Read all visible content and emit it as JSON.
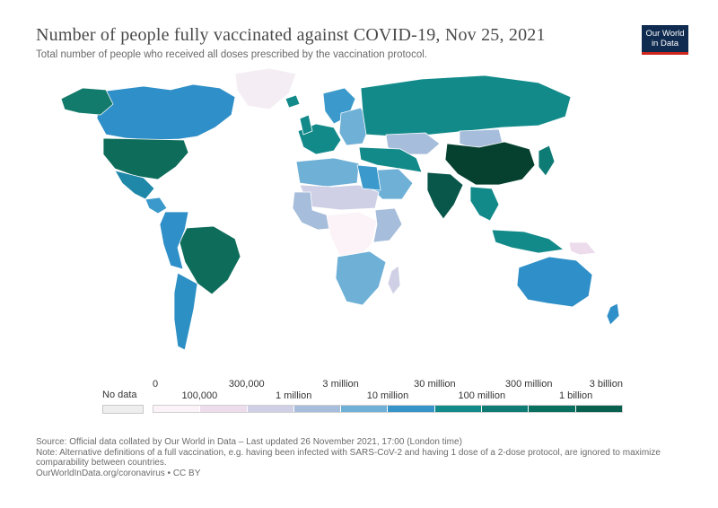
{
  "title": "Number of people fully vaccinated against COVID-19, Nov 25, 2021",
  "subtitle": "Total number of people who received all doses prescribed by the vaccination protocol.",
  "logo": {
    "line1": "Our World",
    "line2": "in Data"
  },
  "legend": {
    "no_data_label": "No data",
    "no_data_color": "#eeeeee",
    "top_ticks": [
      "0",
      "300,000",
      "3 million",
      "30 million",
      "300 million",
      "3 billion"
    ],
    "bottom_ticks": [
      "100,000",
      "1 million",
      "10 million",
      "100 million",
      "1 billion"
    ],
    "bin_colors": [
      "#fbf3f8",
      "#ecdcec",
      "#cfd0e6",
      "#a6bddb",
      "#6fb0d7",
      "#3794c8",
      "#138a8a",
      "#0e7b74",
      "#09705f",
      "#08604f"
    ]
  },
  "regions": [
    {
      "name": "canada",
      "color": "#2f8fc8"
    },
    {
      "name": "alaska",
      "color": "#137b6b"
    },
    {
      "name": "greenland",
      "color": "#f4eef4"
    },
    {
      "name": "united-states",
      "color": "#0e6d5a"
    },
    {
      "name": "mexico",
      "color": "#1f88a8"
    },
    {
      "name": "central-america",
      "color": "#3b9acb"
    },
    {
      "name": "brazil",
      "color": "#0e6d5a"
    },
    {
      "name": "south-america-west",
      "color": "#2f8fc8"
    },
    {
      "name": "argentina",
      "color": "#2c90c4"
    },
    {
      "name": "europe-west",
      "color": "#138a8a"
    },
    {
      "name": "scandinavia",
      "color": "#3b9acb"
    },
    {
      "name": "eastern-europe",
      "color": "#6fb0d7"
    },
    {
      "name": "russia",
      "color": "#138a8a"
    },
    {
      "name": "kazakhstan",
      "color": "#a6bddb"
    },
    {
      "name": "mongolia",
      "color": "#a6bddb"
    },
    {
      "name": "china",
      "color": "#06412f"
    },
    {
      "name": "middle-east",
      "color": "#6fb0d7"
    },
    {
      "name": "turkey-iran",
      "color": "#138a8a"
    },
    {
      "name": "india",
      "color": "#09564a"
    },
    {
      "name": "southeast-asia",
      "color": "#138a8a"
    },
    {
      "name": "indonesia",
      "color": "#138a8a"
    },
    {
      "name": "japan",
      "color": "#0e7b74"
    },
    {
      "name": "north-africa",
      "color": "#6fb0d7"
    },
    {
      "name": "sahel",
      "color": "#cfd0e6"
    },
    {
      "name": "egypt",
      "color": "#3b9acb"
    },
    {
      "name": "west-africa",
      "color": "#a6bddb"
    },
    {
      "name": "central-africa",
      "color": "#fbf3f8"
    },
    {
      "name": "east-africa",
      "color": "#a6bddb"
    },
    {
      "name": "southern-africa",
      "color": "#6fb0d7"
    },
    {
      "name": "madagascar",
      "color": "#cfd0e6"
    },
    {
      "name": "australia",
      "color": "#2f8fc8"
    },
    {
      "name": "new-zealand",
      "color": "#2f8fc8"
    },
    {
      "name": "papua-new-guinea",
      "color": "#ecdcec"
    },
    {
      "name": "uk-iceland",
      "color": "#138a8a"
    }
  ],
  "footer": {
    "source": "Source: Official data collated by Our World in Data – Last updated 26 November 2021, 17:00 (London time)",
    "note": "Note: Alternative definitions of a full vaccination, e.g. having been infected with SARS-CoV-2 and having 1 dose of a 2-dose protocol, are ignored to maximize comparability between countries.",
    "url": "OurWorldInData.org/coronavirus • CC BY"
  }
}
